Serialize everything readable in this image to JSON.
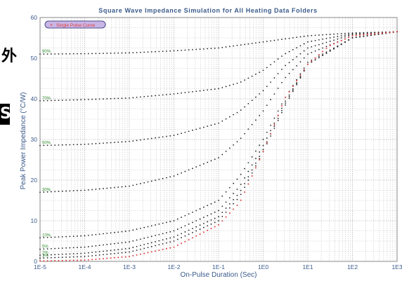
{
  "cut_glyphs": {
    "top": "外",
    "middle": "S"
  },
  "chart_data": {
    "type": "scatter",
    "title": "Square Wave Impedance Simulation for All Heating Data Folders",
    "xlabel": "On-Pulse Duration (Sec)",
    "ylabel": "Peak Power Impedance (°C/W)",
    "x_scale": "log",
    "xlim": [
      1e-05,
      1000
    ],
    "ylim": [
      0,
      60
    ],
    "x_ticks": [
      "1E-5",
      "1E-4",
      "1E-3",
      "1E-2",
      "1E-1",
      "1E0",
      "1E1",
      "1E2",
      "1E3"
    ],
    "y_ticks": [
      0,
      10,
      20,
      30,
      40,
      50,
      60
    ],
    "grid": true,
    "legend": {
      "position": "top-left",
      "label": "Single Pulse Curve"
    },
    "colors": {
      "series": "#222222",
      "single_pulse": "#e03c3c",
      "curve_labels": "#2e8b2e",
      "text": "#3a5a8a"
    },
    "single_pulse_curve": {
      "x": [
        1e-05,
        0.0001,
        0.001,
        0.01,
        0.1,
        0.3,
        1,
        2,
        3,
        10,
        30,
        100,
        1000
      ],
      "y": [
        0.1,
        0.3,
        1.2,
        3.5,
        9,
        14.5,
        27,
        35,
        40,
        48.5,
        53,
        55.5,
        56.5
      ]
    },
    "series": [
      {
        "label": "90%",
        "x": [
          1e-05,
          0.0001,
          0.001,
          0.01,
          0.1,
          1,
          10,
          100,
          1000
        ],
        "y": [
          51,
          51.1,
          51.3,
          51.8,
          52.5,
          54,
          55.5,
          56.2,
          56.5
        ]
      },
      {
        "label": "70%",
        "x": [
          1e-05,
          0.0001,
          0.001,
          0.01,
          0.1,
          0.3,
          1,
          3,
          10,
          100,
          1000
        ],
        "y": [
          39.5,
          39.8,
          40.2,
          41.2,
          42.5,
          44,
          47,
          51,
          54,
          56,
          56.5
        ]
      },
      {
        "label": "50%",
        "x": [
          1e-05,
          0.0001,
          0.001,
          0.01,
          0.1,
          0.3,
          1,
          3,
          10,
          100,
          1000
        ],
        "y": [
          28.5,
          28.8,
          29.5,
          31,
          34,
          37,
          42,
          48,
          52.5,
          55.8,
          56.5
        ]
      },
      {
        "label": "30%",
        "x": [
          1e-05,
          0.0001,
          0.001,
          0.01,
          0.1,
          0.3,
          1,
          3,
          10,
          100,
          1000
        ],
        "y": [
          17,
          17.5,
          18.5,
          21,
          25.5,
          30,
          37,
          45,
          51,
          55.5,
          56.5
        ]
      },
      {
        "label": "10%",
        "x": [
          1e-05,
          0.0001,
          0.001,
          0.01,
          0.1,
          0.3,
          1,
          3,
          10,
          100,
          1000
        ],
        "y": [
          5.8,
          6.3,
          7.5,
          10,
          15,
          21,
          30,
          40,
          49,
          55,
          56.5
        ]
      },
      {
        "label": "5%",
        "x": [
          1e-05,
          0.0001,
          0.001,
          0.01,
          0.1,
          0.3,
          1,
          3,
          10,
          100,
          1000
        ],
        "y": [
          3,
          3.5,
          4.8,
          7.5,
          12.5,
          18.5,
          28.5,
          39,
          48.5,
          55,
          56.5
        ]
      },
      {
        "label": "2%",
        "x": [
          1e-05,
          0.0001,
          0.001,
          0.01,
          0.1,
          0.3,
          1,
          3,
          10,
          100,
          1000
        ],
        "y": [
          1.5,
          2,
          3.2,
          6,
          11,
          17,
          27.5,
          38.5,
          48.5,
          55,
          56.5
        ]
      },
      {
        "label": "1%",
        "x": [
          1e-05,
          0.0001,
          0.001,
          0.01,
          0.1,
          0.3,
          1,
          3,
          10,
          100,
          1000
        ],
        "y": [
          0.8,
          1.2,
          2.3,
          5,
          10,
          16,
          27,
          38,
          48.5,
          55,
          56.5
        ]
      }
    ]
  }
}
